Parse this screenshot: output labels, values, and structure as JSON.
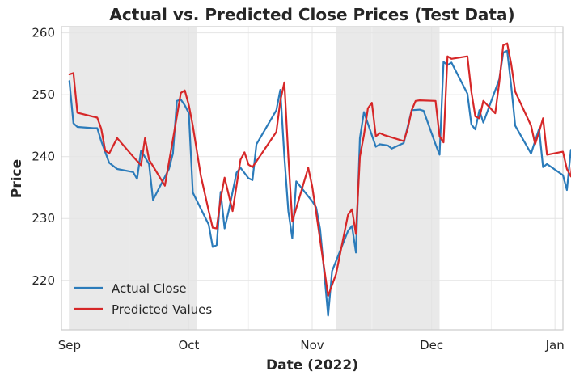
{
  "chart_data": {
    "type": "line",
    "title": "Actual vs. Predicted Close Prices (Test Data)",
    "xlabel": "Date (2022)",
    "ylabel": "Price",
    "x_tick_labels": [
      "Sep",
      "Oct",
      "Nov",
      "Dec",
      "Jan"
    ],
    "y_ticks": [
      220,
      230,
      240,
      250,
      260
    ],
    "xlim": [
      "2022-08-30",
      "2023-01-03"
    ],
    "ylim": [
      212,
      261
    ],
    "grid": true,
    "legend_position": "lower-left",
    "shaded_ranges": [
      [
        "2022-09-01",
        "2022-10-03"
      ],
      [
        "2022-11-07",
        "2022-12-03"
      ]
    ],
    "series": [
      {
        "name": "Actual Close",
        "color": "#2b7bba",
        "points": [
          [
            "2022-09-01",
            252.2
          ],
          [
            "2022-09-02",
            245.4
          ],
          [
            "2022-09-03",
            244.8
          ],
          [
            "2022-09-07",
            244.6
          ],
          [
            "2022-09-08",
            244.6
          ],
          [
            "2022-09-09",
            242.5
          ],
          [
            "2022-09-11",
            239.0
          ],
          [
            "2022-09-13",
            238.0
          ],
          [
            "2022-09-17",
            237.5
          ],
          [
            "2022-09-18",
            236.4
          ],
          [
            "2022-09-19",
            241.0
          ],
          [
            "2022-09-21",
            238.8
          ],
          [
            "2022-09-22",
            233.0
          ],
          [
            "2022-09-26",
            238.0
          ],
          [
            "2022-09-27",
            240.5
          ],
          [
            "2022-09-28",
            249.0
          ],
          [
            "2022-09-29",
            249.2
          ],
          [
            "2022-09-30",
            248.3
          ],
          [
            "2022-10-01",
            247.0
          ],
          [
            "2022-10-02",
            234.2
          ],
          [
            "2022-10-06",
            229.0
          ],
          [
            "2022-10-07",
            225.4
          ],
          [
            "2022-10-08",
            225.7
          ],
          [
            "2022-10-09",
            234.3
          ],
          [
            "2022-10-10",
            228.4
          ],
          [
            "2022-10-11",
            231.2
          ],
          [
            "2022-10-13",
            237.4
          ],
          [
            "2022-10-14",
            238.2
          ],
          [
            "2022-10-16",
            236.5
          ],
          [
            "2022-10-17",
            236.2
          ],
          [
            "2022-10-18",
            242.0
          ],
          [
            "2022-10-23",
            247.5
          ],
          [
            "2022-10-24",
            250.8
          ],
          [
            "2022-10-25",
            240.0
          ],
          [
            "2022-10-26",
            231.2
          ],
          [
            "2022-10-27",
            226.8
          ],
          [
            "2022-10-28",
            236.0
          ],
          [
            "2022-11-01",
            232.8
          ],
          [
            "2022-11-02",
            231.8
          ],
          [
            "2022-11-03",
            228.3
          ],
          [
            "2022-11-04",
            221.4
          ],
          [
            "2022-11-05",
            214.3
          ],
          [
            "2022-11-06",
            221.5
          ],
          [
            "2022-11-10",
            228.0
          ],
          [
            "2022-11-11",
            228.8
          ],
          [
            "2022-11-12",
            224.5
          ],
          [
            "2022-11-13",
            243.0
          ],
          [
            "2022-11-14",
            247.2
          ],
          [
            "2022-11-17",
            241.6
          ],
          [
            "2022-11-18",
            242.0
          ],
          [
            "2022-11-20",
            241.8
          ],
          [
            "2022-11-21",
            241.3
          ],
          [
            "2022-11-24",
            242.2
          ],
          [
            "2022-11-26",
            247.5
          ],
          [
            "2022-11-28",
            247.6
          ],
          [
            "2022-11-29",
            247.4
          ],
          [
            "2022-12-02",
            242.0
          ],
          [
            "2022-12-03",
            240.3
          ],
          [
            "2022-12-04",
            255.3
          ],
          [
            "2022-12-05",
            254.8
          ],
          [
            "2022-12-06",
            255.2
          ],
          [
            "2022-12-10",
            250.2
          ],
          [
            "2022-12-11",
            245.2
          ],
          [
            "2022-12-12",
            244.4
          ],
          [
            "2022-12-13",
            247.5
          ],
          [
            "2022-12-14",
            245.5
          ],
          [
            "2022-12-18",
            252.5
          ],
          [
            "2022-12-19",
            256.8
          ],
          [
            "2022-12-20",
            257.1
          ],
          [
            "2022-12-21",
            251.5
          ],
          [
            "2022-12-22",
            245.0
          ],
          [
            "2022-12-26",
            240.5
          ],
          [
            "2022-12-28",
            244.5
          ],
          [
            "2022-12-29",
            238.3
          ],
          [
            "2022-12-30",
            238.8
          ],
          [
            "2023-01-03",
            237.0
          ],
          [
            "2023-01-04",
            234.6
          ],
          [
            "2023-01-05",
            241.1
          ],
          [
            "2023-01-06",
            240.0
          ]
        ]
      },
      {
        "name": "Predicted Values",
        "color": "#d62728",
        "points": [
          [
            "2022-09-01",
            253.3
          ],
          [
            "2022-09-02",
            253.5
          ],
          [
            "2022-09-03",
            247.1
          ],
          [
            "2022-09-08",
            246.3
          ],
          [
            "2022-09-09",
            244.5
          ],
          [
            "2022-09-10",
            241.0
          ],
          [
            "2022-09-11",
            240.5
          ],
          [
            "2022-09-13",
            243.0
          ],
          [
            "2022-09-17",
            240.0
          ],
          [
            "2022-09-19",
            238.6
          ],
          [
            "2022-09-20",
            243.0
          ],
          [
            "2022-09-21",
            239.5
          ],
          [
            "2022-09-25",
            235.3
          ],
          [
            "2022-09-28",
            246.5
          ],
          [
            "2022-09-29",
            250.3
          ],
          [
            "2022-09-30",
            250.7
          ],
          [
            "2022-10-01",
            248.3
          ],
          [
            "2022-10-02",
            245.0
          ],
          [
            "2022-10-04",
            237.0
          ],
          [
            "2022-10-06",
            231.2
          ],
          [
            "2022-10-07",
            228.5
          ],
          [
            "2022-10-08",
            228.4
          ],
          [
            "2022-10-09",
            233.2
          ],
          [
            "2022-10-10",
            236.6
          ],
          [
            "2022-10-12",
            231.2
          ],
          [
            "2022-10-14",
            239.5
          ],
          [
            "2022-10-15",
            240.7
          ],
          [
            "2022-10-16",
            238.7
          ],
          [
            "2022-10-17",
            238.3
          ],
          [
            "2022-10-23",
            244.0
          ],
          [
            "2022-10-24",
            249.0
          ],
          [
            "2022-10-25",
            252.0
          ],
          [
            "2022-10-26",
            240.0
          ],
          [
            "2022-10-27",
            229.5
          ],
          [
            "2022-10-31",
            238.2
          ],
          [
            "2022-11-01",
            235.2
          ],
          [
            "2022-11-02",
            231.0
          ],
          [
            "2022-11-05",
            217.5
          ],
          [
            "2022-11-07",
            221.0
          ],
          [
            "2022-11-10",
            230.6
          ],
          [
            "2022-11-11",
            231.5
          ],
          [
            "2022-11-12",
            227.5
          ],
          [
            "2022-11-13",
            240.0
          ],
          [
            "2022-11-14",
            243.5
          ],
          [
            "2022-11-15",
            247.8
          ],
          [
            "2022-11-16",
            248.7
          ],
          [
            "2022-11-17",
            243.3
          ],
          [
            "2022-11-18",
            243.8
          ],
          [
            "2022-11-19",
            243.5
          ],
          [
            "2022-11-24",
            242.5
          ],
          [
            "2022-11-25",
            244.5
          ],
          [
            "2022-11-26",
            247.5
          ],
          [
            "2022-11-27",
            249.0
          ],
          [
            "2022-11-28",
            249.1
          ],
          [
            "2022-12-02",
            249.0
          ],
          [
            "2022-12-03",
            243.3
          ],
          [
            "2022-12-04",
            242.3
          ],
          [
            "2022-12-05",
            256.2
          ],
          [
            "2022-12-06",
            255.8
          ],
          [
            "2022-12-10",
            256.2
          ],
          [
            "2022-12-11",
            250.5
          ],
          [
            "2022-12-12",
            246.5
          ],
          [
            "2022-12-13",
            246.2
          ],
          [
            "2022-12-14",
            249.0
          ],
          [
            "2022-12-17",
            247.0
          ],
          [
            "2022-12-18",
            252.0
          ],
          [
            "2022-12-19",
            258.0
          ],
          [
            "2022-12-20",
            258.3
          ],
          [
            "2022-12-21",
            255.0
          ],
          [
            "2022-12-22",
            250.5
          ],
          [
            "2022-12-26",
            245.0
          ],
          [
            "2022-12-27",
            242.0
          ],
          [
            "2022-12-28",
            244.0
          ],
          [
            "2022-12-29",
            246.2
          ],
          [
            "2022-12-30",
            240.3
          ],
          [
            "2023-01-03",
            240.8
          ],
          [
            "2023-01-04",
            238.0
          ],
          [
            "2023-01-05",
            236.8
          ],
          [
            "2023-01-06",
            243.0
          ]
        ]
      }
    ]
  }
}
